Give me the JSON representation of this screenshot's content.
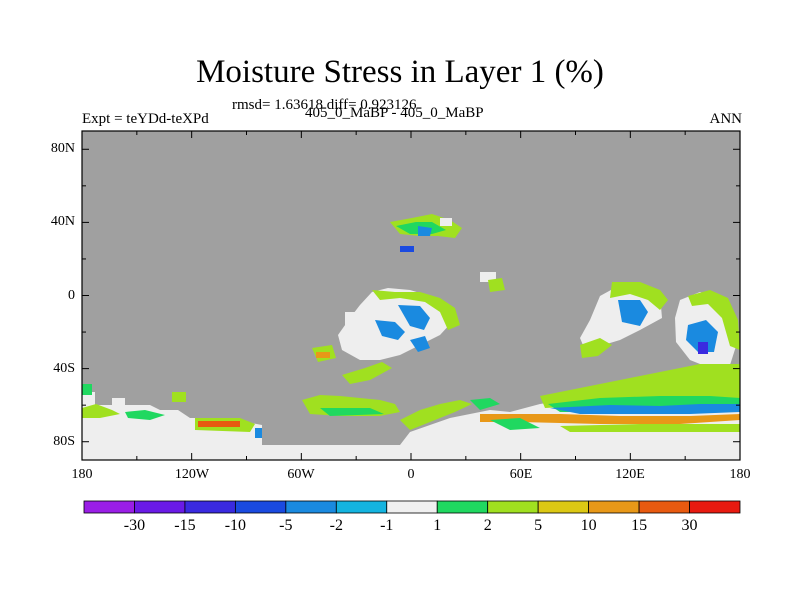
{
  "title": "Moisture Stress in Layer 1 (%)",
  "subtitle": "rmsd= 1.63618 diff= 0.923126",
  "experiment_label": "Expt = teYDd-teXPd",
  "center_label": "405_0_MaBP - 405_0_MaBP",
  "season_label": "ANN",
  "latitude_ticks": [
    "80N",
    "40N",
    "0",
    "40S",
    "80S"
  ],
  "longitude_ticks": [
    "180",
    "120W",
    "60W",
    "0",
    "60E",
    "120E",
    "180"
  ],
  "colorbar": {
    "labels": [
      "-30",
      "-15",
      "-10",
      "-5",
      "-2",
      "-1",
      "1",
      "2",
      "5",
      "10",
      "15",
      "30"
    ],
    "colors": [
      "#9a1ee6",
      "#6a1ae6",
      "#3a2ae0",
      "#1a4ae0",
      "#1a8ae0",
      "#14b4e0",
      "#f0f0f0",
      "#20d860",
      "#a0e020",
      "#dcc814",
      "#e89818",
      "#e85a10",
      "#e81a10"
    ]
  },
  "colors": {
    "land_mask": "#a0a0a0",
    "near_zero": "#eeeeee",
    "positive_2": "#20d860",
    "positive_5": "#a0e020",
    "negative_2": "#1a8ae0",
    "negative_5": "#1a4ae0",
    "positive_15": "#e89818",
    "positive_30": "#e85a10"
  }
}
